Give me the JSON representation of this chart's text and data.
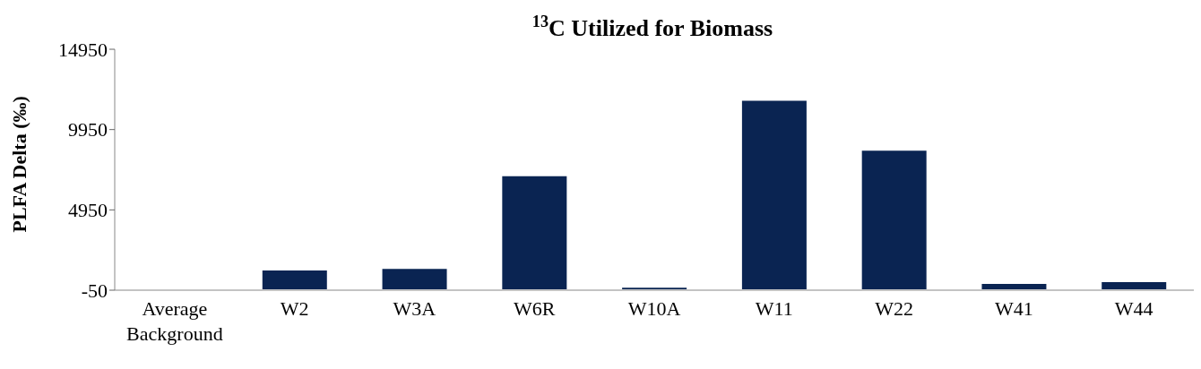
{
  "chart_data": {
    "type": "bar",
    "title": "$^{13}$C Utilized for Biomass",
    "ylabel": "PLFA Delta (‰)",
    "categories": [
      "Average Background",
      "W2",
      "W3A",
      "W6R",
      "W10A",
      "W11",
      "W22",
      "W41",
      "W44"
    ],
    "values": [
      0,
      1170,
      1280,
      7040,
      100,
      11740,
      8640,
      340,
      450
    ],
    "color": "#0a2452",
    "ylim": [
      -50,
      14950
    ],
    "yticks": [
      -50,
      4950,
      9950,
      14950
    ],
    "grid": false,
    "legend": false
  }
}
